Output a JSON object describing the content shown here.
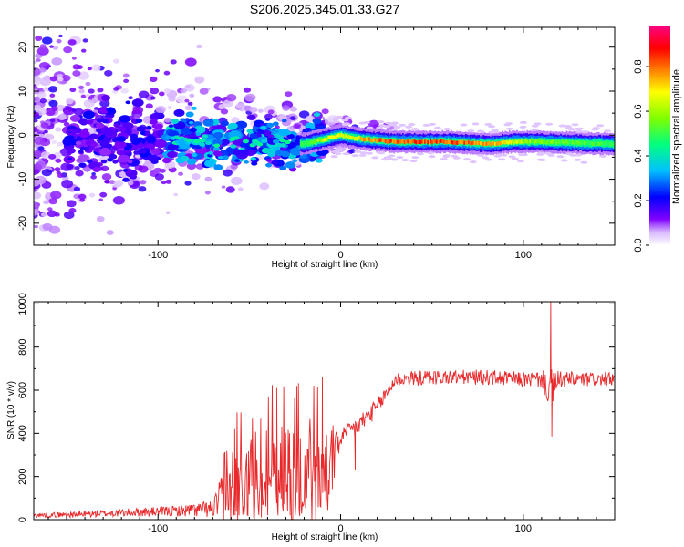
{
  "chart_data": [
    {
      "type": "heatmap",
      "title": "S206.2025.345.01.33.G27",
      "xlabel": "Height of straight line (km)",
      "ylabel": "Frequency (Hz)",
      "xlim": [
        -168,
        150
      ],
      "ylim": [
        -25,
        24.5
      ],
      "xticks": [
        -100,
        0,
        100
      ],
      "xtick_labels": [
        "-100",
        "0",
        "100"
      ],
      "yticks": [
        -20,
        -10,
        0,
        10,
        20
      ],
      "ytick_labels": [
        "-20",
        "-10",
        "0",
        "10",
        "20"
      ],
      "colorbar": {
        "label": "Normalized spectral amplitude",
        "range": [
          0.0,
          0.98
        ],
        "ticks": [
          0.0,
          0.2,
          0.4,
          0.6,
          0.8
        ],
        "tick_labels": [
          "0.0",
          "0.2",
          "0.4",
          "0.6",
          "0.8"
        ],
        "colors": [
          "#ffffff",
          "#8000ff",
          "#0000ff",
          "#00c0ff",
          "#00ff80",
          "#80ff00",
          "#ffff00",
          "#ff8000",
          "#ff0000",
          "#ff0080"
        ]
      },
      "ridge": {
        "description_points_x": [
          -140,
          -100,
          -60,
          -20,
          -5,
          0,
          5,
          15,
          30,
          60,
          80,
          95,
          110,
          150
        ],
        "frequency_hz": [
          -1,
          -1,
          -1.5,
          -2,
          -0.5,
          0,
          -0.5,
          -1,
          -1.5,
          -1.5,
          -2,
          -1.5,
          -1.5,
          -2
        ],
        "peak_amplitude": [
          0.3,
          0.35,
          0.45,
          0.55,
          0.75,
          0.7,
          0.7,
          0.85,
          0.9,
          0.9,
          0.85,
          0.7,
          0.6,
          0.55
        ]
      }
    },
    {
      "type": "line",
      "xlabel": "Height of straight line (km)",
      "ylabel": "SNR (10 * v/v)",
      "xlim": [
        -168,
        150
      ],
      "ylim": [
        0,
        1010
      ],
      "xticks": [
        -100,
        0,
        100
      ],
      "xtick_labels": [
        "-100",
        "0",
        "100"
      ],
      "yticks": [
        0,
        200,
        400,
        600,
        800,
        1000
      ],
      "ytick_labels": [
        "0",
        "200",
        "400",
        "600",
        "800",
        "1000"
      ],
      "series": [
        {
          "name": "SNR",
          "color": "#e8282a",
          "x_envelope": [
            -168,
            -140,
            -110,
            -90,
            -70,
            -60,
            -50,
            -40,
            -30,
            -20,
            -10,
            -5,
            0,
            10,
            20,
            30,
            50,
            80,
            100,
            110,
            115,
            120,
            150
          ],
          "y_mean": [
            20,
            25,
            35,
            40,
            50,
            150,
            200,
            210,
            230,
            230,
            240,
            250,
            380,
            440,
            520,
            650,
            660,
            660,
            650,
            650,
            600,
            650,
            650
          ],
          "y_noise": [
            10,
            15,
            20,
            25,
            40,
            180,
            200,
            220,
            250,
            260,
            250,
            150,
            40,
            50,
            40,
            35,
            35,
            35,
            35,
            40,
            100,
            40,
            30
          ],
          "spikes": [
            {
              "x": -58,
              "y": 420
            },
            {
              "x": -35,
              "y": 610
            },
            {
              "x": -24,
              "y": 620
            },
            {
              "x": -10,
              "y": 660
            },
            {
              "x": 8,
              "y": 230
            },
            {
              "x": 115,
              "y": 1010
            },
            {
              "x": 115.6,
              "y": 385
            }
          ]
        }
      ]
    }
  ],
  "colors": {
    "axis": "#000000",
    "line": "#e8282a",
    "background": "#ffffff"
  }
}
